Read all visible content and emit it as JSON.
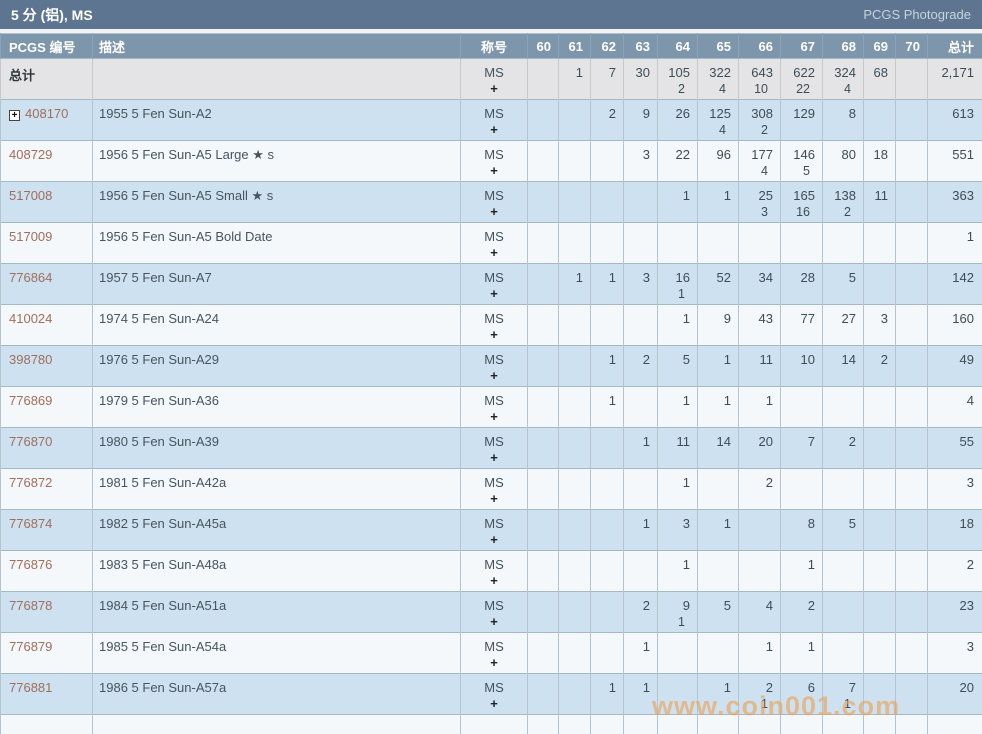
{
  "titlebar": {
    "title": "5 分 (铝), MS",
    "photograde_link": "PCGS Photograde"
  },
  "watermark": "www.coin001.com",
  "icons": {
    "expand": "+"
  },
  "colors": {
    "titlebar_bg": "#5d7590",
    "header_bg": "#7e96ac",
    "row_blue": "#cde1f1",
    "row_white": "#f4f8fb",
    "totals_row_bg": "#e4e4e6",
    "pcgs_link": "#a06e5a",
    "watermark": "#eca052"
  },
  "table": {
    "headers": {
      "pcgs": "PCGS 编号",
      "desc": "描述",
      "designation": "称号",
      "grades": [
        "60",
        "61",
        "62",
        "63",
        "64",
        "65",
        "66",
        "67",
        "68",
        "69",
        "70"
      ],
      "total": "总计"
    },
    "designation": {
      "ms": "MS",
      "plus": "+"
    },
    "totals_row": {
      "label": "总计",
      "ms": [
        "",
        "1",
        "7",
        "30",
        "105",
        "322",
        "643",
        "622",
        "324",
        "68",
        ""
      ],
      "plus": [
        "",
        "",
        "",
        "",
        "2",
        "4",
        "10",
        "22",
        "4",
        "",
        ""
      ],
      "total": "2,171"
    },
    "rows": [
      {
        "pcgs": "408170",
        "expand": true,
        "desc": "1955 5 Fen Sun-A2",
        "ms": [
          "",
          "",
          "2",
          "9",
          "26",
          "125",
          "308",
          "129",
          "8",
          "",
          ""
        ],
        "plus": [
          "",
          "",
          "",
          "",
          "",
          "4",
          "2",
          "",
          "",
          "",
          ""
        ],
        "total": "613"
      },
      {
        "pcgs": "408729",
        "expand": false,
        "desc": "1956 5 Fen Sun-A5 Large ★ s",
        "ms": [
          "",
          "",
          "",
          "3",
          "22",
          "96",
          "177",
          "146",
          "80",
          "18",
          ""
        ],
        "plus": [
          "",
          "",
          "",
          "",
          "",
          "",
          "4",
          "5",
          "",
          "",
          ""
        ],
        "total": "551"
      },
      {
        "pcgs": "517008",
        "expand": false,
        "desc": "1956 5 Fen Sun-A5 Small ★ s",
        "ms": [
          "",
          "",
          "",
          "",
          "1",
          "1",
          "25",
          "165",
          "138",
          "11",
          ""
        ],
        "plus": [
          "",
          "",
          "",
          "",
          "",
          "",
          "3",
          "16",
          "2",
          "",
          ""
        ],
        "total": "363"
      },
      {
        "pcgs": "517009",
        "expand": false,
        "desc": "1956 5 Fen Sun-A5 Bold Date",
        "ms": [
          "",
          "",
          "",
          "",
          "",
          "",
          "",
          "",
          "",
          "",
          ""
        ],
        "plus": [
          "",
          "",
          "",
          "",
          "",
          "",
          "",
          "",
          "",
          "",
          ""
        ],
        "total": "1"
      },
      {
        "pcgs": "776864",
        "expand": false,
        "desc": "1957 5 Fen Sun-A7",
        "ms": [
          "",
          "1",
          "1",
          "3",
          "16",
          "52",
          "34",
          "28",
          "5",
          "",
          ""
        ],
        "plus": [
          "",
          "",
          "",
          "",
          "1",
          "",
          "",
          "",
          "",
          "",
          ""
        ],
        "total": "142"
      },
      {
        "pcgs": "410024",
        "expand": false,
        "desc": "1974 5 Fen Sun-A24",
        "ms": [
          "",
          "",
          "",
          "",
          "1",
          "9",
          "43",
          "77",
          "27",
          "3",
          ""
        ],
        "plus": [
          "",
          "",
          "",
          "",
          "",
          "",
          "",
          "",
          "",
          "",
          ""
        ],
        "total": "160"
      },
      {
        "pcgs": "398780",
        "expand": false,
        "desc": "1976 5 Fen Sun-A29",
        "ms": [
          "",
          "",
          "1",
          "2",
          "5",
          "1",
          "11",
          "10",
          "14",
          "2",
          ""
        ],
        "plus": [
          "",
          "",
          "",
          "",
          "",
          "",
          "",
          "",
          "",
          "",
          ""
        ],
        "total": "49"
      },
      {
        "pcgs": "776869",
        "expand": false,
        "desc": "1979 5 Fen Sun-A36",
        "ms": [
          "",
          "",
          "1",
          "",
          "1",
          "1",
          "1",
          "",
          "",
          "",
          ""
        ],
        "plus": [
          "",
          "",
          "",
          "",
          "",
          "",
          "",
          "",
          "",
          "",
          ""
        ],
        "total": "4"
      },
      {
        "pcgs": "776870",
        "expand": false,
        "desc": "1980 5 Fen Sun-A39",
        "ms": [
          "",
          "",
          "",
          "1",
          "11",
          "14",
          "20",
          "7",
          "2",
          "",
          ""
        ],
        "plus": [
          "",
          "",
          "",
          "",
          "",
          "",
          "",
          "",
          "",
          "",
          ""
        ],
        "total": "55"
      },
      {
        "pcgs": "776872",
        "expand": false,
        "desc": "1981 5 Fen Sun-A42a",
        "ms": [
          "",
          "",
          "",
          "",
          "1",
          "",
          "2",
          "",
          "",
          "",
          ""
        ],
        "plus": [
          "",
          "",
          "",
          "",
          "",
          "",
          "",
          "",
          "",
          "",
          ""
        ],
        "total": "3"
      },
      {
        "pcgs": "776874",
        "expand": false,
        "desc": "1982 5 Fen Sun-A45a",
        "ms": [
          "",
          "",
          "",
          "1",
          "3",
          "1",
          "",
          "8",
          "5",
          "",
          ""
        ],
        "plus": [
          "",
          "",
          "",
          "",
          "",
          "",
          "",
          "",
          "",
          "",
          ""
        ],
        "total": "18"
      },
      {
        "pcgs": "776876",
        "expand": false,
        "desc": "1983 5 Fen Sun-A48a",
        "ms": [
          "",
          "",
          "",
          "",
          "1",
          "",
          "",
          "1",
          "",
          "",
          ""
        ],
        "plus": [
          "",
          "",
          "",
          "",
          "",
          "",
          "",
          "",
          "",
          "",
          ""
        ],
        "total": "2"
      },
      {
        "pcgs": "776878",
        "expand": false,
        "desc": "1984 5 Fen Sun-A51a",
        "ms": [
          "",
          "",
          "",
          "2",
          "9",
          "5",
          "4",
          "2",
          "",
          "",
          ""
        ],
        "plus": [
          "",
          "",
          "",
          "",
          "1",
          "",
          "",
          "",
          "",
          "",
          ""
        ],
        "total": "23"
      },
      {
        "pcgs": "776879",
        "expand": false,
        "desc": "1985 5 Fen Sun-A54a",
        "ms": [
          "",
          "",
          "",
          "1",
          "",
          "",
          "1",
          "1",
          "",
          "",
          ""
        ],
        "plus": [
          "",
          "",
          "",
          "",
          "",
          "",
          "",
          "",
          "",
          "",
          ""
        ],
        "total": "3"
      },
      {
        "pcgs": "776881",
        "expand": false,
        "desc": "1986 5 Fen Sun-A57a",
        "ms": [
          "",
          "",
          "1",
          "1",
          "",
          "1",
          "2",
          "6",
          "7",
          "",
          ""
        ],
        "plus": [
          "",
          "",
          "",
          "",
          "",
          "",
          "1",
          "",
          "1",
          "",
          ""
        ],
        "total": "20"
      }
    ]
  }
}
